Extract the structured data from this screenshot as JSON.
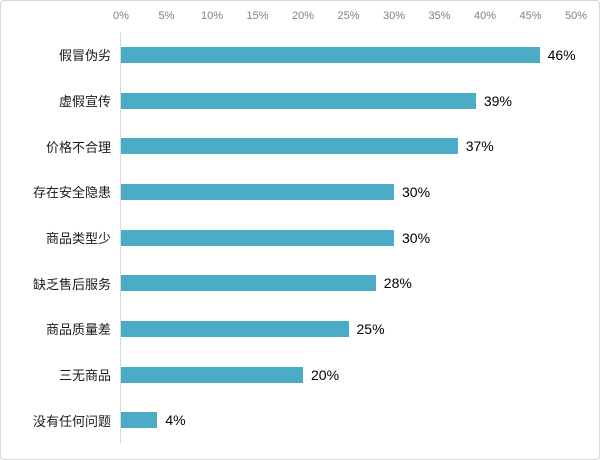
{
  "chart_data": {
    "type": "bar",
    "orientation": "horizontal",
    "title": "",
    "xlabel": "",
    "ylabel": "",
    "xlim": [
      0,
      50
    ],
    "gridlines": false,
    "legend": "none",
    "axis_ticks": [
      "0%",
      "5%",
      "10%",
      "15%",
      "20%",
      "25%",
      "30%",
      "35%",
      "40%",
      "45%",
      "50%"
    ],
    "axis_tick_values": [
      0,
      5,
      10,
      15,
      20,
      25,
      30,
      35,
      40,
      45,
      50
    ],
    "categories": [
      "假冒伪劣",
      "虚假宣传",
      "价格不合理",
      "存在安全隐患",
      "商品类型少",
      "缺乏售后服务",
      "商品质量差",
      "三无商品",
      "没有任何问题"
    ],
    "values": [
      46,
      39,
      37,
      30,
      30,
      28,
      25,
      20,
      4
    ],
    "value_labels": [
      "46%",
      "39%",
      "37%",
      "30%",
      "30%",
      "28%",
      "25%",
      "20%",
      "4%"
    ],
    "colors": {
      "bar": "#4AACC5",
      "axis_line": "#d9d9d9",
      "axis_text": "#808080",
      "category_text": "#1a1a1a",
      "value_text": "#000000",
      "background": "#ffffff",
      "border": "#d9d9d9"
    }
  }
}
